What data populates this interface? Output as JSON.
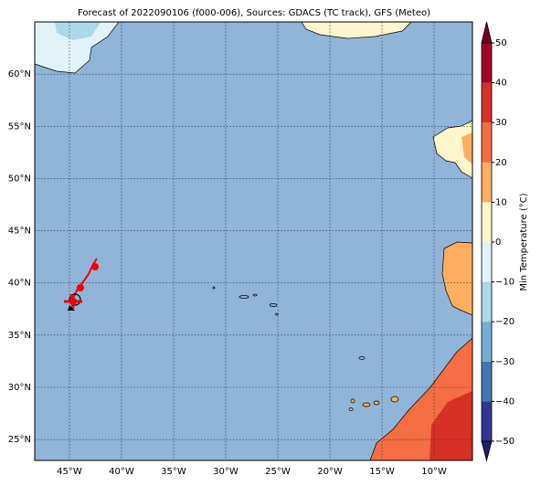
{
  "title": "Forecast of 2022090106 (f000-006), Sources: GDACS (TC track), GFS (Meteo)",
  "map": {
    "lon_range": [
      -48.33,
      -6.32
    ],
    "lat_range": [
      23.0,
      65.0
    ],
    "lon_ticks": [
      {
        "value": -45,
        "label": "45°W"
      },
      {
        "value": -40,
        "label": "40°W"
      },
      {
        "value": -35,
        "label": "35°W"
      },
      {
        "value": -30,
        "label": "30°W"
      },
      {
        "value": -25,
        "label": "25°W"
      },
      {
        "value": -20,
        "label": "20°W"
      },
      {
        "value": -15,
        "label": "15°W"
      },
      {
        "value": -10,
        "label": "10°W"
      }
    ],
    "lat_ticks": [
      {
        "value": 25,
        "label": "25°N"
      },
      {
        "value": 30,
        "label": "30°N"
      },
      {
        "value": 35,
        "label": "35°N"
      },
      {
        "value": 40,
        "label": "40°N"
      },
      {
        "value": 45,
        "label": "45°N"
      },
      {
        "value": 50,
        "label": "50°N"
      },
      {
        "value": 55,
        "label": "55°N"
      },
      {
        "value": 60,
        "label": "60°N"
      }
    ],
    "grid": true
  },
  "colorbar": {
    "label": "Min Temperature (°C)",
    "range": [
      -50,
      50
    ],
    "ticks": [
      {
        "value": -50,
        "label": "−50"
      },
      {
        "value": -40,
        "label": "−40"
      },
      {
        "value": -30,
        "label": "−30"
      },
      {
        "value": -20,
        "label": "−20"
      },
      {
        "value": -10,
        "label": "−10"
      },
      0,
      10,
      20,
      30,
      40,
      50
    ],
    "colors": [
      "#313695",
      "#4575b4",
      "#74add1",
      "#abd9e9",
      "#e0f3f8",
      "#fef6cc",
      "#fdae61",
      "#f46d43",
      "#d73027",
      "#a50026"
    ],
    "under_color": "#1a1f6e",
    "over_color": "#7a0020"
  }
}
